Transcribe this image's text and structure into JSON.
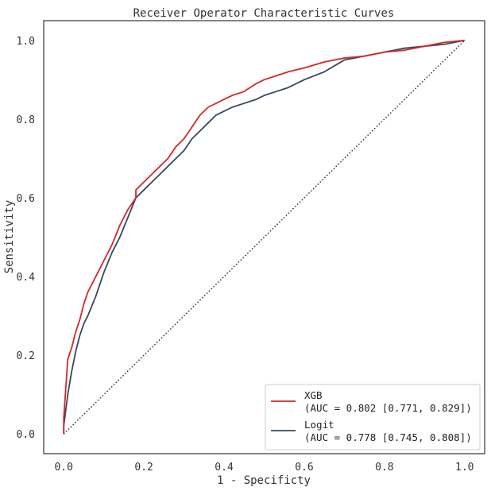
{
  "chart_data": {
    "type": "line",
    "title": "Receiver Operator Characteristic Curves",
    "xlabel": "1 - Specificty",
    "ylabel": "Sensitivity",
    "xlim": [
      -0.05,
      1.05
    ],
    "ylim": [
      -0.05,
      1.05
    ],
    "xticks": [
      "0.0",
      "0.2",
      "0.4",
      "0.6",
      "0.8",
      "1.0"
    ],
    "yticks": [
      "0.0",
      "0.2",
      "0.4",
      "0.6",
      "0.8",
      "1.0"
    ],
    "grid": false,
    "legend_position": "lower-right",
    "reference_line": {
      "x": [
        0,
        1
      ],
      "y": [
        0,
        1
      ],
      "style": "dotted",
      "color": "#222222"
    },
    "series": [
      {
        "name": "XGB",
        "label_line1": "XGB",
        "label_line2": "(AUC = 0.802 [0.771, 0.829])",
        "color": "#d62728",
        "x": [
          0.0,
          0.0,
          0.01,
          0.02,
          0.03,
          0.04,
          0.05,
          0.06,
          0.08,
          0.1,
          0.12,
          0.14,
          0.16,
          0.18,
          0.18,
          0.2,
          0.22,
          0.24,
          0.26,
          0.28,
          0.3,
          0.32,
          0.34,
          0.36,
          0.38,
          0.4,
          0.42,
          0.45,
          0.48,
          0.5,
          0.53,
          0.56,
          0.6,
          0.65,
          0.7,
          0.75,
          0.8,
          0.85,
          0.9,
          0.95,
          1.0
        ],
        "y": [
          0.0,
          0.04,
          0.19,
          0.22,
          0.26,
          0.29,
          0.33,
          0.36,
          0.4,
          0.44,
          0.48,
          0.53,
          0.57,
          0.6,
          0.62,
          0.64,
          0.66,
          0.68,
          0.7,
          0.73,
          0.75,
          0.78,
          0.81,
          0.83,
          0.84,
          0.85,
          0.86,
          0.87,
          0.89,
          0.9,
          0.91,
          0.92,
          0.93,
          0.945,
          0.955,
          0.96,
          0.97,
          0.975,
          0.985,
          0.995,
          1.0
        ]
      },
      {
        "name": "Logit",
        "label_line1": "Logit",
        "label_line2": "(AUC = 0.778 [0.745, 0.808])",
        "color": "#34495e",
        "x": [
          0.0,
          0.0,
          0.01,
          0.02,
          0.03,
          0.04,
          0.05,
          0.06,
          0.08,
          0.1,
          0.12,
          0.14,
          0.16,
          0.18,
          0.2,
          0.22,
          0.24,
          0.26,
          0.28,
          0.3,
          0.32,
          0.34,
          0.36,
          0.38,
          0.4,
          0.42,
          0.45,
          0.48,
          0.5,
          0.53,
          0.56,
          0.6,
          0.65,
          0.7,
          0.75,
          0.8,
          0.85,
          0.9,
          0.95,
          1.0
        ],
        "y": [
          0.0,
          0.02,
          0.1,
          0.16,
          0.21,
          0.25,
          0.28,
          0.3,
          0.35,
          0.41,
          0.46,
          0.5,
          0.55,
          0.6,
          0.62,
          0.64,
          0.66,
          0.68,
          0.7,
          0.72,
          0.75,
          0.77,
          0.79,
          0.81,
          0.82,
          0.83,
          0.84,
          0.85,
          0.86,
          0.87,
          0.88,
          0.9,
          0.92,
          0.95,
          0.96,
          0.97,
          0.98,
          0.985,
          0.99,
          1.0
        ]
      }
    ]
  }
}
